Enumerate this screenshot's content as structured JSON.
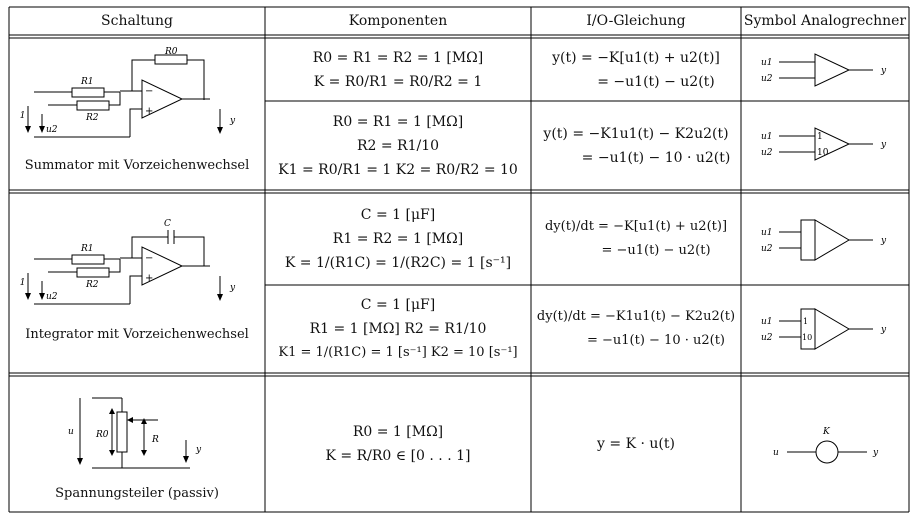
{
  "table": {
    "headers": [
      "Schaltung",
      "Komponenten",
      "I/O-Gleichung",
      "Symbol Analogrechner"
    ],
    "rows": [
      {
        "circuit_label": "Summator mit Vorzeichenwechsel",
        "circuit_parts": {
          "r0": "R0",
          "r1": "R1",
          "r2": "R2",
          "u1": "u1",
          "u2": "u2",
          "y": "y"
        },
        "sub": [
          {
            "components": [
              "R0 = R1 = R2 = 1 [MΩ]",
              "K = R0/R1 = R0/R2 = 1"
            ],
            "equation": [
              "y(t) = −K[u1(t) + u2(t)]",
              "= −u1(t) − u2(t)"
            ],
            "symbol": {
              "in1": "u1",
              "in2": "u2",
              "out": "y",
              "gain1": "",
              "gain2": ""
            }
          },
          {
            "components": [
              "R0 = R1 = 1 [MΩ]",
              "R2 = R1/10",
              "K1 = R0/R1 = 1    K2 = R0/R2 = 10"
            ],
            "equation": [
              "y(t) = −K1u1(t) − K2u2(t)",
              "= −u1(t) − 10 · u2(t)"
            ],
            "symbol": {
              "in1": "u1",
              "in2": "u2",
              "out": "y",
              "gain1": "1",
              "gain2": "10"
            }
          }
        ]
      },
      {
        "circuit_label": "Integrator mit Vorzeichenwechsel",
        "circuit_parts": {
          "c": "C",
          "r1": "R1",
          "r2": "R2",
          "u1": "u1",
          "u2": "u2",
          "y": "y"
        },
        "sub": [
          {
            "components": [
              "C = 1 [μF]",
              "R1 = R2 = 1 [MΩ]",
              "K = 1/(R1C) = 1/(R2C) = 1 [s⁻¹]"
            ],
            "equation": [
              "dy(t)/dt = −K[u1(t) + u2(t)]",
              "= −u1(t) − u2(t)"
            ],
            "symbol": {
              "in1": "u1",
              "in2": "u2",
              "out": "y",
              "gain1": "",
              "gain2": ""
            }
          },
          {
            "components": [
              "C = 1 [μF]",
              "R1 = 1 [MΩ]    R2 = R1/10",
              "K1 = 1/(R1C) = 1 [s⁻¹]    K2 = 10 [s⁻¹]"
            ],
            "equation": [
              "dy(t)/dt = −K1u1(t) − K2u2(t)",
              "= −u1(t) − 10 · u2(t)"
            ],
            "symbol": {
              "in1": "u1",
              "in2": "u2",
              "out": "y",
              "gain1": "1",
              "gain2": "10"
            }
          }
        ]
      },
      {
        "circuit_label": "Spannungsteiler (passiv)",
        "circuit_parts": {
          "u": "u",
          "r0": "R0",
          "r": "R",
          "y": "y"
        },
        "sub": [
          {
            "components": [
              "R0 = 1 [MΩ]",
              "K = R/R0 ∈ [0 . . . 1]"
            ],
            "equation": [
              "y = K · u(t)"
            ],
            "symbol": {
              "in": "u",
              "out": "y",
              "gain": "K"
            }
          }
        ]
      }
    ]
  }
}
